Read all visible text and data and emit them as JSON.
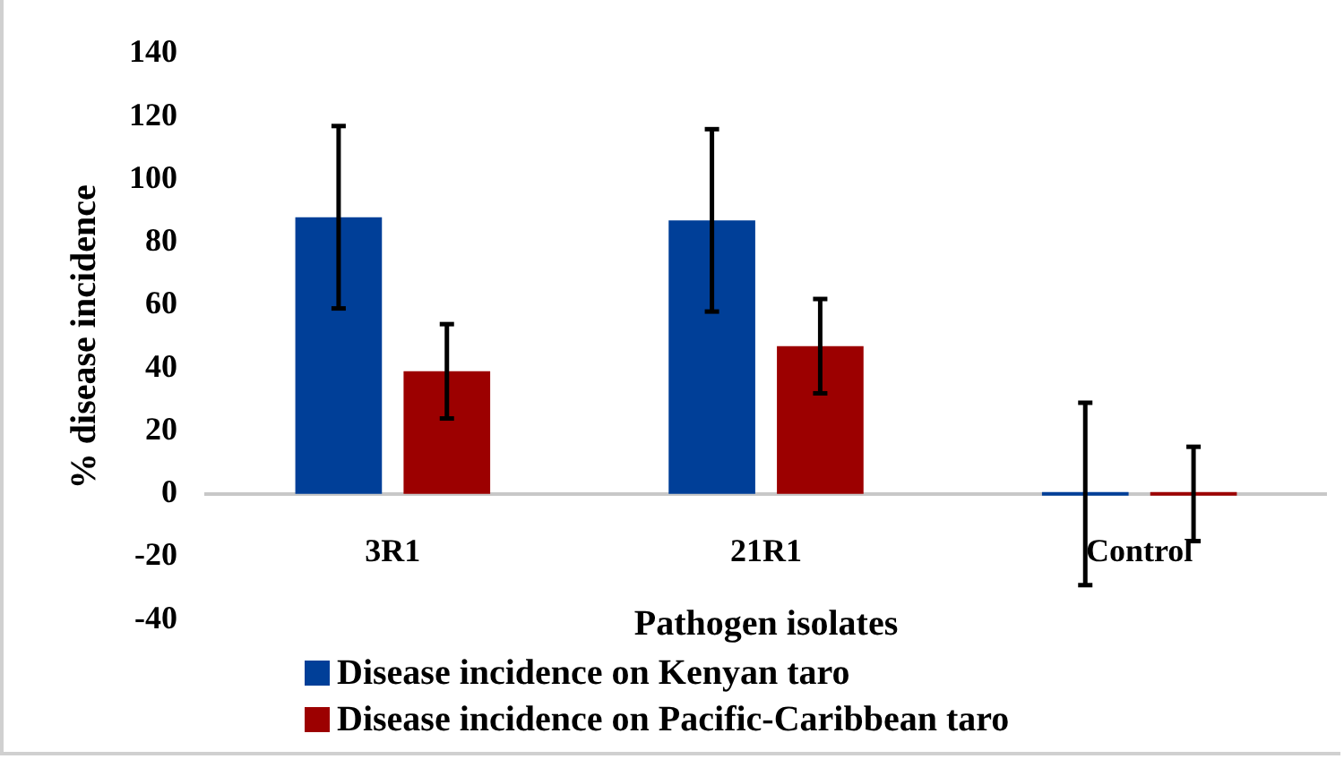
{
  "chart_data": {
    "type": "bar",
    "xlabel": "Pathogen isolates",
    "ylabel": "% disease incidence",
    "categories": [
      "3R1",
      "21R1",
      "Control"
    ],
    "series": [
      {
        "name": "Disease incidence on Kenyan taro",
        "color": "#003f98",
        "values": [
          88,
          87,
          0
        ],
        "errors": [
          29,
          29,
          29
        ]
      },
      {
        "name": "Disease incidence on Pacific-Caribbean taro",
        "color": "#9c0000",
        "values": [
          39,
          47,
          0
        ],
        "errors": [
          15,
          15,
          15
        ]
      }
    ],
    "ylim": [
      -40,
      140
    ],
    "yticks": [
      -40,
      -20,
      0,
      20,
      40,
      60,
      80,
      100,
      120,
      140
    ],
    "grid": false,
    "legend": "bottom"
  }
}
